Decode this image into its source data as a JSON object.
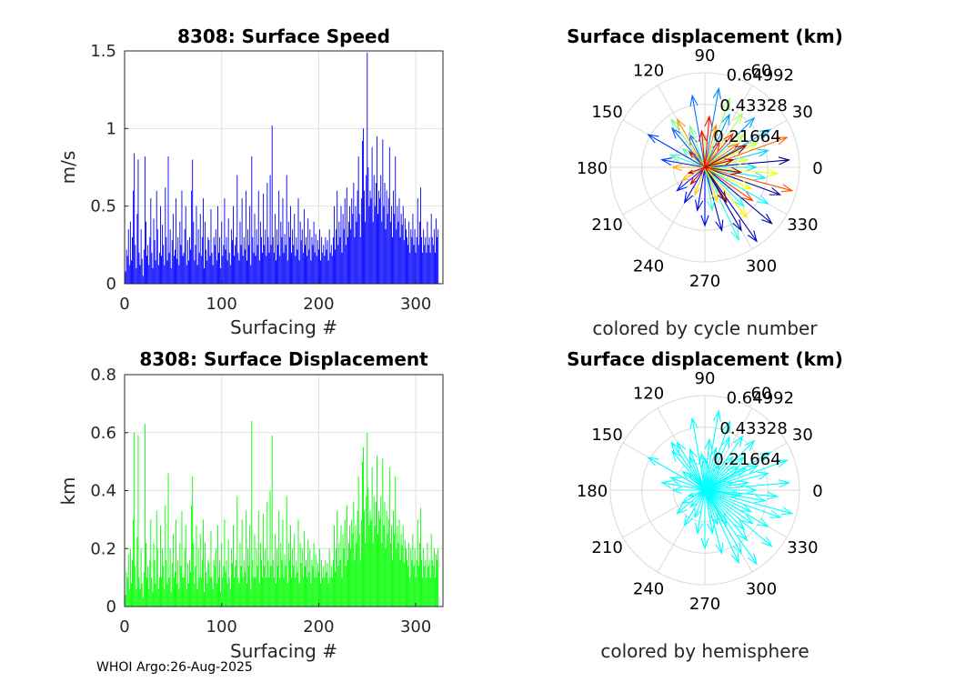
{
  "footer": "WHOI Argo:26-Aug-2025",
  "chart_data": [
    {
      "type": "bar",
      "id": "speed",
      "title": "8308: Surface Speed",
      "xlabel": "Surfacing #",
      "ylabel": "m/s",
      "xlim": [
        0,
        328
      ],
      "ylim": [
        0,
        1.5
      ],
      "xticks": [
        "0",
        "100",
        "200",
        "300"
      ],
      "yticks": [
        "0",
        "0.5",
        "1",
        "1.5"
      ],
      "color": "#0000ff",
      "values": [
        0.08,
        0.22,
        0.18,
        0.35,
        0.12,
        0.4,
        0.15,
        0.3,
        0.6,
        0.84,
        0.25,
        0.1,
        0.45,
        0.8,
        0.2,
        0.12,
        0.35,
        0.16,
        0.05,
        0.22,
        0.82,
        0.4,
        0.18,
        0.25,
        0.12,
        0.3,
        0.55,
        0.2,
        0.1,
        0.42,
        0.28,
        0.15,
        0.6,
        0.35,
        0.12,
        0.2,
        0.5,
        0.18,
        0.38,
        0.25,
        0.12,
        0.62,
        0.3,
        0.15,
        0.82,
        0.2,
        0.35,
        0.1,
        0.28,
        0.45,
        0.18,
        0.22,
        0.55,
        0.16,
        0.3,
        0.12,
        0.4,
        0.25,
        0.6,
        0.18,
        0.2,
        0.35,
        0.5,
        0.12,
        0.28,
        0.15,
        0.3,
        0.22,
        0.6,
        0.8,
        0.4,
        0.15,
        0.25,
        0.5,
        0.12,
        0.35,
        0.2,
        0.45,
        0.18,
        0.3,
        0.55,
        0.1,
        0.4,
        0.22,
        0.15,
        0.3,
        0.28,
        0.18,
        0.48,
        0.2,
        0.12,
        0.3,
        0.25,
        0.35,
        0.15,
        0.5,
        0.2,
        0.3,
        0.1,
        0.4,
        0.18,
        0.25,
        0.55,
        0.22,
        0.3,
        0.15,
        0.42,
        0.2,
        0.12,
        0.35,
        0.28,
        0.5,
        0.18,
        0.25,
        0.3,
        0.7,
        0.2,
        0.15,
        0.4,
        0.25,
        0.55,
        0.18,
        0.3,
        0.22,
        0.6,
        0.15,
        0.35,
        0.25,
        0.5,
        0.12,
        0.82,
        0.3,
        0.2,
        0.45,
        0.18,
        0.35,
        0.25,
        0.6,
        0.15,
        0.4,
        0.3,
        0.2,
        0.58,
        0.25,
        0.35,
        0.18,
        0.65,
        0.3,
        0.2,
        0.7,
        0.25,
        1.02,
        0.3,
        0.2,
        0.45,
        0.15,
        0.35,
        0.25,
        0.6,
        0.18,
        0.4,
        0.3,
        0.55,
        0.2,
        0.32,
        0.25,
        0.7,
        0.15,
        0.4,
        0.3,
        0.5,
        0.2,
        0.35,
        0.25,
        0.45,
        0.18,
        0.3,
        0.22,
        0.55,
        0.15,
        0.4,
        0.28,
        0.35,
        0.2,
        0.48,
        0.25,
        0.3,
        0.18,
        0.42,
        0.22,
        0.35,
        0.15,
        0.3,
        0.25,
        0.4,
        0.2,
        0.32,
        0.18,
        0.28,
        0.22,
        0.35,
        0.15,
        0.3,
        0.2,
        0.25,
        0.18,
        0.3,
        0.22,
        0.28,
        0.15,
        0.35,
        0.2,
        0.25,
        0.18,
        0.3,
        0.5,
        0.22,
        0.35,
        0.6,
        0.25,
        0.4,
        0.3,
        0.5,
        0.2,
        0.45,
        0.35,
        0.55,
        0.25,
        0.62,
        0.3,
        0.4,
        0.5,
        0.35,
        0.55,
        0.45,
        0.65,
        0.3,
        0.5,
        0.4,
        0.6,
        0.82,
        0.45,
        0.3,
        0.55,
        0.92,
        1.0,
        0.6,
        0.4,
        0.7,
        1.49,
        0.75,
        0.5,
        0.6,
        0.55,
        0.88,
        0.4,
        0.7,
        0.5,
        0.65,
        0.95,
        0.45,
        0.6,
        0.55,
        0.7,
        0.4,
        0.93,
        0.5,
        0.65,
        0.35,
        0.6,
        0.45,
        0.55,
        0.88,
        0.4,
        0.5,
        0.3,
        0.6,
        0.45,
        0.82,
        0.35,
        0.5,
        0.4,
        0.55,
        0.3,
        0.45,
        0.38,
        0.5,
        0.28,
        0.42,
        0.35,
        0.3,
        0.25,
        0.4,
        0.2,
        0.35,
        0.3,
        0.45,
        0.25,
        0.35,
        0.2,
        0.3,
        0.55,
        0.25,
        0.4,
        0.62,
        0.3,
        0.2,
        0.35,
        0.25,
        0.3,
        0.2,
        0.4,
        0.25,
        0.3,
        0.2,
        0.45,
        0.3,
        0.25,
        0.35,
        0.2,
        0.42,
        0.3,
        0.35
      ]
    },
    {
      "type": "bar",
      "id": "disp",
      "title": "8308: Surface Displacement",
      "xlabel": "Surfacing #",
      "ylabel": "km",
      "xlim": [
        0,
        328
      ],
      "ylim": [
        0,
        0.8
      ],
      "xticks": [
        "0",
        "100",
        "200",
        "300"
      ],
      "yticks": [
        "0",
        "0.2",
        "0.4",
        "0.6",
        "0.8"
      ],
      "color": "#00ff00",
      "values": [
        0.04,
        0.12,
        0.1,
        0.18,
        0.06,
        0.2,
        0.08,
        0.16,
        0.3,
        0.6,
        0.14,
        0.06,
        0.24,
        0.59,
        0.1,
        0.06,
        0.2,
        0.08,
        0.03,
        0.12,
        0.63,
        0.22,
        0.1,
        0.14,
        0.06,
        0.16,
        0.3,
        0.1,
        0.05,
        0.22,
        0.16,
        0.08,
        0.33,
        0.2,
        0.06,
        0.1,
        0.28,
        0.1,
        0.2,
        0.14,
        0.06,
        0.35,
        0.16,
        0.08,
        0.46,
        0.1,
        0.2,
        0.05,
        0.15,
        0.25,
        0.1,
        0.12,
        0.3,
        0.08,
        0.16,
        0.06,
        0.22,
        0.14,
        0.33,
        0.1,
        0.1,
        0.2,
        0.28,
        0.06,
        0.15,
        0.08,
        0.16,
        0.12,
        0.35,
        0.45,
        0.22,
        0.08,
        0.14,
        0.28,
        0.06,
        0.2,
        0.1,
        0.25,
        0.1,
        0.16,
        0.3,
        0.05,
        0.22,
        0.12,
        0.08,
        0.16,
        0.15,
        0.1,
        0.26,
        0.1,
        0.06,
        0.16,
        0.14,
        0.2,
        0.08,
        0.28,
        0.1,
        0.16,
        0.05,
        0.22,
        0.1,
        0.14,
        0.3,
        0.12,
        0.16,
        0.08,
        0.23,
        0.1,
        0.06,
        0.2,
        0.15,
        0.28,
        0.1,
        0.14,
        0.16,
        0.38,
        0.1,
        0.08,
        0.22,
        0.14,
        0.3,
        0.1,
        0.16,
        0.12,
        0.33,
        0.08,
        0.2,
        0.14,
        0.28,
        0.06,
        0.64,
        0.16,
        0.1,
        0.25,
        0.1,
        0.2,
        0.14,
        0.33,
        0.08,
        0.22,
        0.16,
        0.1,
        0.32,
        0.14,
        0.2,
        0.1,
        0.36,
        0.16,
        0.1,
        0.4,
        0.14,
        0.59,
        0.16,
        0.1,
        0.25,
        0.08,
        0.2,
        0.14,
        0.33,
        0.1,
        0.22,
        0.16,
        0.3,
        0.1,
        0.18,
        0.14,
        0.38,
        0.08,
        0.22,
        0.16,
        0.28,
        0.1,
        0.2,
        0.14,
        0.25,
        0.1,
        0.16,
        0.12,
        0.3,
        0.08,
        0.22,
        0.15,
        0.2,
        0.1,
        0.26,
        0.14,
        0.16,
        0.1,
        0.23,
        0.12,
        0.2,
        0.08,
        0.16,
        0.14,
        0.22,
        0.1,
        0.18,
        0.1,
        0.15,
        0.12,
        0.2,
        0.08,
        0.16,
        0.1,
        0.14,
        0.1,
        0.16,
        0.12,
        0.15,
        0.08,
        0.2,
        0.1,
        0.14,
        0.1,
        0.16,
        0.28,
        0.12,
        0.2,
        0.33,
        0.14,
        0.22,
        0.16,
        0.28,
        0.1,
        0.25,
        0.2,
        0.3,
        0.14,
        0.35,
        0.16,
        0.22,
        0.28,
        0.2,
        0.3,
        0.25,
        0.36,
        0.16,
        0.28,
        0.22,
        0.33,
        0.45,
        0.25,
        0.16,
        0.3,
        0.5,
        0.55,
        0.33,
        0.22,
        0.38,
        0.6,
        0.41,
        0.28,
        0.33,
        0.3,
        0.48,
        0.22,
        0.38,
        0.28,
        0.36,
        0.52,
        0.25,
        0.33,
        0.3,
        0.38,
        0.22,
        0.51,
        0.28,
        0.36,
        0.2,
        0.33,
        0.25,
        0.3,
        0.48,
        0.22,
        0.28,
        0.16,
        0.33,
        0.25,
        0.45,
        0.2,
        0.28,
        0.22,
        0.3,
        0.16,
        0.25,
        0.21,
        0.28,
        0.15,
        0.23,
        0.2,
        0.16,
        0.14,
        0.22,
        0.1,
        0.2,
        0.16,
        0.25,
        0.14,
        0.2,
        0.1,
        0.16,
        0.3,
        0.14,
        0.22,
        0.34,
        0.16,
        0.1,
        0.2,
        0.14,
        0.16,
        0.1,
        0.22,
        0.14,
        0.16,
        0.1,
        0.25,
        0.16,
        0.14,
        0.2,
        0.1,
        0.18,
        0.16,
        0.2
      ]
    },
    {
      "type": "polar-quiver",
      "id": "polar1",
      "title": "Surface displacement (km)",
      "caption": "colored by cycle number",
      "rmax": 0.64992,
      "rticks": [
        "0.21664",
        "0.43328",
        "0.64992"
      ],
      "angle_ticks": [
        "0",
        "30",
        "60",
        "90",
        "120",
        "150",
        "180",
        "210",
        "240",
        "270",
        "300",
        "330"
      ],
      "colormap": "jet",
      "vectors_deg_km": [
        [
          5,
          0.58
        ],
        [
          -20,
          0.55
        ],
        [
          -40,
          0.6
        ],
        [
          -60,
          0.5
        ],
        [
          -55,
          0.62
        ],
        [
          -75,
          0.45
        ],
        [
          -90,
          0.4
        ],
        [
          -100,
          0.3
        ],
        [
          -120,
          0.28
        ],
        [
          -140,
          0.25
        ],
        [
          170,
          0.3
        ],
        [
          150,
          0.45
        ],
        [
          130,
          0.35
        ],
        [
          115,
          0.25
        ],
        [
          100,
          0.5
        ],
        [
          80,
          0.55
        ],
        [
          65,
          0.4
        ],
        [
          45,
          0.48
        ],
        [
          30,
          0.52
        ],
        [
          15,
          0.45
        ],
        [
          0,
          0.35
        ],
        [
          -10,
          0.42
        ],
        [
          -30,
          0.5
        ],
        [
          -45,
          0.38
        ],
        [
          -65,
          0.55
        ],
        [
          -80,
          0.3
        ],
        [
          160,
          0.25
        ],
        [
          140,
          0.2
        ],
        [
          125,
          0.4
        ],
        [
          110,
          0.3
        ],
        [
          90,
          0.22
        ],
        [
          70,
          0.5
        ],
        [
          55,
          0.45
        ],
        [
          40,
          0.35
        ],
        [
          25,
          0.4
        ],
        [
          10,
          0.3
        ],
        [
          -5,
          0.5
        ],
        [
          -25,
          0.35
        ],
        [
          -50,
          0.45
        ],
        [
          -70,
          0.25
        ],
        [
          -110,
          0.2
        ],
        [
          -150,
          0.18
        ],
        [
          180,
          0.22
        ],
        [
          120,
          0.38
        ],
        [
          75,
          0.3
        ],
        [
          35,
          0.28
        ],
        [
          20,
          0.6
        ],
        [
          -15,
          0.62
        ],
        [
          -35,
          0.4
        ],
        [
          50,
          0.3
        ],
        [
          60,
          0.2
        ],
        [
          85,
          0.35
        ],
        [
          95,
          0.25
        ],
        [
          135,
          0.15
        ],
        [
          -130,
          0.15
        ],
        [
          -160,
          0.12
        ],
        [
          15,
          0.2
        ],
        [
          -8,
          0.25
        ],
        [
          28,
          0.32
        ],
        [
          -58,
          0.28
        ]
      ]
    },
    {
      "type": "polar-quiver",
      "id": "polar2",
      "title": "Surface displacement (km)",
      "caption": "colored by hemisphere",
      "rmax": 0.64992,
      "rticks": [
        "0.21664",
        "0.43328",
        "0.64992"
      ],
      "angle_ticks": [
        "0",
        "30",
        "60",
        "90",
        "120",
        "150",
        "180",
        "210",
        "240",
        "270",
        "300",
        "330"
      ],
      "color": "#00ffff",
      "vectors_deg_km": [
        [
          5,
          0.58
        ],
        [
          -20,
          0.55
        ],
        [
          -40,
          0.6
        ],
        [
          -60,
          0.5
        ],
        [
          -55,
          0.62
        ],
        [
          -75,
          0.45
        ],
        [
          -90,
          0.4
        ],
        [
          -100,
          0.3
        ],
        [
          -120,
          0.28
        ],
        [
          -140,
          0.25
        ],
        [
          170,
          0.3
        ],
        [
          150,
          0.45
        ],
        [
          130,
          0.35
        ],
        [
          115,
          0.25
        ],
        [
          100,
          0.5
        ],
        [
          80,
          0.55
        ],
        [
          65,
          0.4
        ],
        [
          45,
          0.48
        ],
        [
          30,
          0.52
        ],
        [
          15,
          0.45
        ],
        [
          0,
          0.35
        ],
        [
          -10,
          0.42
        ],
        [
          -30,
          0.5
        ],
        [
          -45,
          0.38
        ],
        [
          -65,
          0.55
        ],
        [
          -80,
          0.3
        ],
        [
          160,
          0.25
        ],
        [
          140,
          0.2
        ],
        [
          125,
          0.4
        ],
        [
          110,
          0.3
        ],
        [
          90,
          0.22
        ],
        [
          70,
          0.5
        ],
        [
          55,
          0.45
        ],
        [
          40,
          0.35
        ],
        [
          25,
          0.4
        ],
        [
          10,
          0.3
        ],
        [
          -5,
          0.5
        ],
        [
          -25,
          0.35
        ],
        [
          -50,
          0.45
        ],
        [
          -70,
          0.25
        ],
        [
          -110,
          0.2
        ],
        [
          -150,
          0.18
        ],
        [
          180,
          0.22
        ],
        [
          120,
          0.38
        ],
        [
          75,
          0.3
        ],
        [
          35,
          0.28
        ],
        [
          20,
          0.6
        ],
        [
          -15,
          0.62
        ],
        [
          -35,
          0.4
        ],
        [
          50,
          0.3
        ],
        [
          60,
          0.2
        ],
        [
          85,
          0.35
        ],
        [
          95,
          0.25
        ],
        [
          135,
          0.15
        ],
        [
          -130,
          0.15
        ],
        [
          -160,
          0.12
        ],
        [
          15,
          0.2
        ],
        [
          -8,
          0.25
        ],
        [
          28,
          0.32
        ],
        [
          -58,
          0.28
        ]
      ]
    }
  ]
}
